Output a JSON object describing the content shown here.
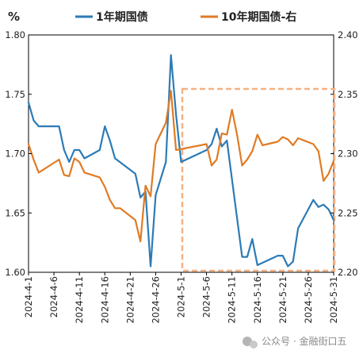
{
  "chart_data": {
    "type": "line",
    "y_unit_label": "%",
    "x_tick_labels": [
      "2024-4-1",
      "2024-4-6",
      "2024-4-11",
      "2024-4-16",
      "2024-4-21",
      "2024-4-26",
      "2024-5-1",
      "2024-5-6",
      "2024-5-11",
      "2024-5-16",
      "2024-5-21",
      "2024-5-26",
      "2024-5-31"
    ],
    "x_range": [
      "2024-04-01",
      "2024-05-31"
    ],
    "ylim_left": [
      1.6,
      1.8
    ],
    "ylim_right": [
      2.2,
      2.4
    ],
    "y_left_ticks": [
      "1.80",
      "1.75",
      "1.70",
      "1.65",
      "1.60"
    ],
    "y_right_ticks": [
      "2.40",
      "2.35",
      "2.30",
      "2.25",
      "2.20"
    ],
    "legend_position": "top",
    "grid": false,
    "highlight_box": {
      "x_start": "2024-05-01",
      "x_end": "2024-05-31",
      "color": "#F4B183",
      "style": "dashed"
    },
    "series": [
      {
        "name": "1年期国债",
        "axis": "left",
        "color": "#2C7BB6",
        "points": [
          [
            "2024-04-01",
            1.743
          ],
          [
            "2024-04-02",
            1.728
          ],
          [
            "2024-04-03",
            1.723
          ],
          [
            "2024-04-07",
            1.723
          ],
          [
            "2024-04-08",
            1.703
          ],
          [
            "2024-04-09",
            1.693
          ],
          [
            "2024-04-10",
            1.703
          ],
          [
            "2024-04-11",
            1.703
          ],
          [
            "2024-04-12",
            1.696
          ],
          [
            "2024-04-15",
            1.703
          ],
          [
            "2024-04-16",
            1.723
          ],
          [
            "2024-04-17",
            1.711
          ],
          [
            "2024-04-18",
            1.696
          ],
          [
            "2024-04-22",
            1.683
          ],
          [
            "2024-04-23",
            1.663
          ],
          [
            "2024-04-24",
            1.668
          ],
          [
            "2024-04-25",
            1.605
          ],
          [
            "2024-04-26",
            1.665
          ],
          [
            "2024-04-28",
            1.693
          ],
          [
            "2024-04-29",
            1.783
          ],
          [
            "2024-04-30",
            1.733
          ],
          [
            "2024-05-01",
            1.693
          ],
          [
            "2024-05-06",
            1.703
          ],
          [
            "2024-05-07",
            1.708
          ],
          [
            "2024-05-08",
            1.721
          ],
          [
            "2024-05-09",
            1.706
          ],
          [
            "2024-05-10",
            1.711
          ],
          [
            "2024-05-13",
            1.613
          ],
          [
            "2024-05-14",
            1.613
          ],
          [
            "2024-05-15",
            1.628
          ],
          [
            "2024-05-16",
            1.606
          ],
          [
            "2024-05-20",
            1.614
          ],
          [
            "2024-05-21",
            1.614
          ],
          [
            "2024-05-22",
            1.605
          ],
          [
            "2024-05-23",
            1.609
          ],
          [
            "2024-05-24",
            1.637
          ],
          [
            "2024-05-27",
            1.661
          ],
          [
            "2024-05-28",
            1.655
          ],
          [
            "2024-05-29",
            1.657
          ],
          [
            "2024-05-30",
            1.653
          ],
          [
            "2024-05-31",
            1.644
          ]
        ]
      },
      {
        "name": "10年期国债-右",
        "axis": "right",
        "color": "#E07B24",
        "points": [
          [
            "2024-04-01",
            2.308
          ],
          [
            "2024-04-02",
            2.295
          ],
          [
            "2024-04-03",
            2.284
          ],
          [
            "2024-04-07",
            2.295
          ],
          [
            "2024-04-08",
            2.282
          ],
          [
            "2024-04-09",
            2.281
          ],
          [
            "2024-04-10",
            2.296
          ],
          [
            "2024-04-11",
            2.293
          ],
          [
            "2024-04-12",
            2.284
          ],
          [
            "2024-04-15",
            2.28
          ],
          [
            "2024-04-16",
            2.272
          ],
          [
            "2024-04-17",
            2.261
          ],
          [
            "2024-04-18",
            2.254
          ],
          [
            "2024-04-19",
            2.254
          ],
          [
            "2024-04-22",
            2.244
          ],
          [
            "2024-04-23",
            2.226
          ],
          [
            "2024-04-24",
            2.273
          ],
          [
            "2024-04-25",
            2.264
          ],
          [
            "2024-04-26",
            2.308
          ],
          [
            "2024-04-28",
            2.326
          ],
          [
            "2024-04-29",
            2.353
          ],
          [
            "2024-04-30",
            2.303
          ],
          [
            "2024-05-06",
            2.308
          ],
          [
            "2024-05-07",
            2.29
          ],
          [
            "2024-05-08",
            2.295
          ],
          [
            "2024-05-09",
            2.317
          ],
          [
            "2024-05-10",
            2.316
          ],
          [
            "2024-05-11",
            2.337
          ],
          [
            "2024-05-12",
            2.316
          ],
          [
            "2024-05-13",
            2.29
          ],
          [
            "2024-05-14",
            2.295
          ],
          [
            "2024-05-15",
            2.302
          ],
          [
            "2024-05-16",
            2.316
          ],
          [
            "2024-05-17",
            2.307
          ],
          [
            "2024-05-20",
            2.31
          ],
          [
            "2024-05-21",
            2.314
          ],
          [
            "2024-05-22",
            2.312
          ],
          [
            "2024-05-23",
            2.307
          ],
          [
            "2024-05-24",
            2.313
          ],
          [
            "2024-05-27",
            2.308
          ],
          [
            "2024-05-28",
            2.302
          ],
          [
            "2024-05-29",
            2.277
          ],
          [
            "2024-05-30",
            2.283
          ],
          [
            "2024-05-31",
            2.294
          ]
        ]
      }
    ]
  },
  "watermark": {
    "icon": "wechat-icon",
    "text": "公众号 · 金融街口五"
  }
}
